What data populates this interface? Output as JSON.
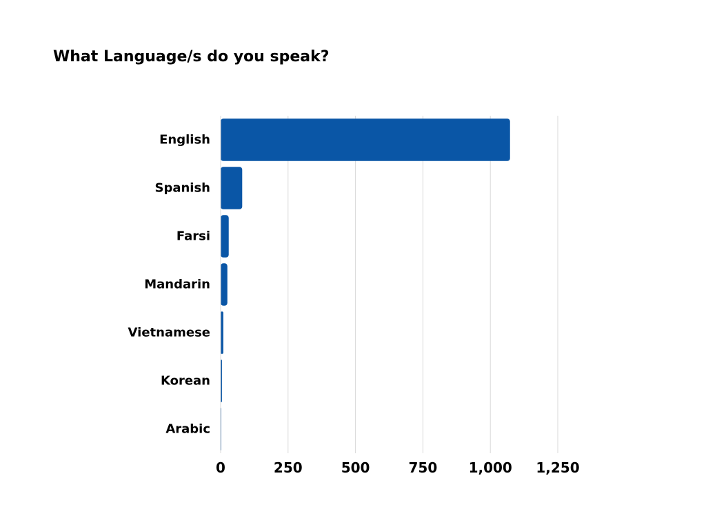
{
  "chart_data": {
    "type": "bar",
    "orientation": "horizontal",
    "title": "What Language/s do you speak?",
    "xlabel": "",
    "ylabel": "",
    "categories": [
      "English",
      "Spanish",
      "Farsi",
      "Mandarin",
      "Vietnamese",
      "Korean",
      "Arabic"
    ],
    "values": [
      1073,
      80,
      30,
      25,
      10,
      5,
      2
    ],
    "xlim": [
      0,
      1250
    ],
    "xticks": [
      0,
      250,
      500,
      750,
      1000,
      1250
    ],
    "xtick_labels": [
      "0",
      "250",
      "500",
      "750",
      "1,000",
      "1,250"
    ],
    "grid": "vertical",
    "legend": "none",
    "bar_color": "#0A56A6",
    "grid_color": "#d9d9d9"
  }
}
